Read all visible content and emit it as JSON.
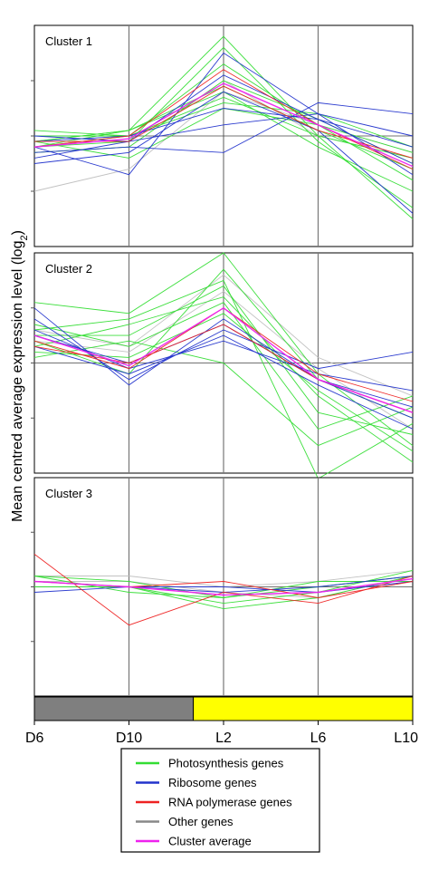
{
  "chart_data": {
    "type": "line",
    "ylabel": "Mean centred average expression level (log",
    "ylabel_sub": "2",
    "ylabel_close": ")",
    "x": [
      "D6",
      "D10",
      "L2",
      "L6",
      "L10"
    ],
    "condition_bar": {
      "segments": [
        {
          "name": "dark",
          "from": "D6",
          "to_fraction": 0.42,
          "color": "#7f7f7f"
        },
        {
          "name": "light",
          "from_fraction": 0.42,
          "to": "L10",
          "color": "#ffff00"
        }
      ]
    },
    "colors": {
      "photosynthesis": "#33dd33",
      "ribosome": "#2233cc",
      "rna_polymerase": "#ee2222",
      "other": "#bbbbbb",
      "cluster_average": "#ee22ee",
      "gridline": "#777777"
    },
    "legend": [
      {
        "key": "photosynthesis",
        "label": "Photosynthesis genes",
        "color": "#33dd33"
      },
      {
        "key": "ribosome",
        "label": "Ribosome genes",
        "color": "#2233cc"
      },
      {
        "key": "rna_polymerase",
        "label": "RNA polymerase genes",
        "color": "#ee2222"
      },
      {
        "key": "other",
        "label": "Other genes",
        "color": "#888888"
      },
      {
        "key": "cluster_average",
        "label": "Cluster average",
        "color": "#ee22ee"
      }
    ],
    "legend_placement": "bottom-center",
    "panels": [
      {
        "label": "Cluster 1",
        "ylim": [
          -2,
          2
        ],
        "yticks": [
          -1,
          0,
          1
        ],
        "series": [
          {
            "group": "photosynthesis",
            "values": [
              -0.1,
              0.1,
              1.8,
              0.0,
              -1.5
            ]
          },
          {
            "group": "photosynthesis",
            "values": [
              -0.2,
              -0.1,
              1.6,
              -0.1,
              -1.3
            ]
          },
          {
            "group": "photosynthesis",
            "values": [
              0.0,
              0.0,
              1.3,
              0.2,
              -0.8
            ]
          },
          {
            "group": "photosynthesis",
            "values": [
              -0.3,
              -0.2,
              1.0,
              0.3,
              -0.5
            ]
          },
          {
            "group": "photosynthesis",
            "values": [
              -0.1,
              0.1,
              0.9,
              0.1,
              -0.6
            ]
          },
          {
            "group": "photosynthesis",
            "values": [
              0.1,
              0.0,
              0.7,
              0.0,
              -0.4
            ]
          },
          {
            "group": "photosynthesis",
            "values": [
              -0.2,
              0.0,
              0.6,
              0.4,
              -0.2
            ]
          },
          {
            "group": "photosynthesis",
            "values": [
              -0.1,
              -0.4,
              0.5,
              0.2,
              -0.3
            ]
          },
          {
            "group": "photosynthesis",
            "values": [
              -0.2,
              0.1,
              0.8,
              -0.2,
              -1.0
            ]
          },
          {
            "group": "ribosome",
            "values": [
              -0.2,
              -0.7,
              1.5,
              0.4,
              -0.7
            ]
          },
          {
            "group": "ribosome",
            "values": [
              -0.4,
              -0.1,
              1.1,
              0.3,
              -0.5
            ]
          },
          {
            "group": "ribosome",
            "values": [
              -0.3,
              -0.2,
              -0.3,
              0.6,
              0.4
            ]
          },
          {
            "group": "ribosome",
            "values": [
              -0.1,
              0.0,
              0.5,
              0.3,
              -0.2
            ]
          },
          {
            "group": "ribosome",
            "values": [
              -0.5,
              -0.3,
              0.8,
              0.1,
              -1.4
            ]
          },
          {
            "group": "ribosome",
            "values": [
              0.0,
              -0.1,
              0.2,
              0.4,
              0.0
            ]
          },
          {
            "group": "rna_polymerase",
            "values": [
              -0.2,
              0.0,
              1.2,
              0.2,
              -0.6
            ]
          },
          {
            "group": "rna_polymerase",
            "values": [
              -0.1,
              -0.1,
              0.9,
              0.1,
              -0.4
            ]
          },
          {
            "group": "other",
            "values": [
              -1.0,
              -0.6,
              0.8,
              0.2,
              -0.3
            ]
          },
          {
            "group": "other",
            "values": [
              -0.3,
              -0.2,
              1.0,
              0.0,
              -0.4
            ]
          },
          {
            "group": "cluster_average",
            "values": [
              -0.2,
              -0.05,
              0.95,
              0.2,
              -0.55
            ]
          }
        ]
      },
      {
        "label": "Cluster 2",
        "ylim": [
          -2,
          2
        ],
        "yticks": [
          -1,
          0,
          1
        ],
        "series": [
          {
            "group": "photosynthesis",
            "values": [
              1.1,
              0.9,
              2.0,
              -0.2,
              -1.5
            ]
          },
          {
            "group": "photosynthesis",
            "values": [
              0.6,
              0.8,
              1.5,
              -2.1,
              -1.1
            ]
          },
          {
            "group": "photosynthesis",
            "values": [
              0.3,
              0.7,
              1.2,
              -0.6,
              -1.8
            ]
          },
          {
            "group": "photosynthesis",
            "values": [
              0.5,
              0.5,
              1.4,
              -0.9,
              -1.3
            ]
          },
          {
            "group": "photosynthesis",
            "values": [
              0.4,
              -0.2,
              1.7,
              -0.3,
              -1.0
            ]
          },
          {
            "group": "photosynthesis",
            "values": [
              0.2,
              0.1,
              0.9,
              -0.5,
              -1.6
            ]
          },
          {
            "group": "photosynthesis",
            "values": [
              0.7,
              0.3,
              1.1,
              -1.2,
              -0.6
            ]
          },
          {
            "group": "photosynthesis",
            "values": [
              0.1,
              0.4,
              0.0,
              -1.5,
              -0.8
            ]
          },
          {
            "group": "ribosome",
            "values": [
              1.0,
              -0.4,
              0.8,
              -0.3,
              -0.8
            ]
          },
          {
            "group": "ribosome",
            "values": [
              0.6,
              -0.1,
              0.4,
              -0.2,
              -0.5
            ]
          },
          {
            "group": "ribosome",
            "values": [
              0.3,
              -0.2,
              0.5,
              -0.4,
              -1.2
            ]
          },
          {
            "group": "ribosome",
            "values": [
              0.8,
              -0.3,
              0.6,
              -0.1,
              0.2
            ]
          },
          {
            "group": "ribosome",
            "values": [
              0.5,
              0.0,
              0.7,
              -0.3,
              -1.0
            ]
          },
          {
            "group": "rna_polymerase",
            "values": [
              0.4,
              -0.1,
              1.0,
              -0.2,
              -0.7
            ]
          },
          {
            "group": "rna_polymerase",
            "values": [
              0.3,
              0.0,
              0.7,
              -0.3,
              -0.9
            ]
          },
          {
            "group": "other",
            "values": [
              0.6,
              0.3,
              1.6,
              0.1,
              -0.6
            ]
          },
          {
            "group": "other",
            "values": [
              0.4,
              0.2,
              1.3,
              -0.1,
              -1.2
            ]
          },
          {
            "group": "cluster_average",
            "values": [
              0.5,
              -0.05,
              1.0,
              -0.3,
              -0.9
            ]
          }
        ]
      },
      {
        "label": "Cluster 3",
        "ylim": [
          -2,
          2
        ],
        "yticks": [
          -1,
          0,
          1
        ],
        "series": [
          {
            "group": "photosynthesis",
            "values": [
              0.2,
              0.1,
              -0.2,
              0.1,
              0.1
            ]
          },
          {
            "group": "photosynthesis",
            "values": [
              0.1,
              0.0,
              -0.4,
              -0.2,
              0.2
            ]
          },
          {
            "group": "photosynthesis",
            "values": [
              0.0,
              0.0,
              -0.3,
              -0.1,
              0.3
            ]
          },
          {
            "group": "photosynthesis",
            "values": [
              0.2,
              -0.1,
              -0.2,
              0.0,
              0.2
            ]
          },
          {
            "group": "ribosome",
            "values": [
              -0.1,
              0.0,
              0.0,
              -0.1,
              0.1
            ]
          },
          {
            "group": "ribosome",
            "values": [
              0.1,
              0.0,
              -0.1,
              0.0,
              0.2
            ]
          },
          {
            "group": "rna_polymerase",
            "values": [
              0.6,
              -0.7,
              -0.1,
              -0.3,
              0.2
            ]
          },
          {
            "group": "rna_polymerase",
            "values": [
              0.1,
              0.0,
              0.1,
              -0.2,
              0.1
            ]
          },
          {
            "group": "other",
            "values": [
              0.2,
              0.2,
              0.0,
              0.1,
              0.3
            ]
          },
          {
            "group": "other",
            "values": [
              0.1,
              0.1,
              -0.1,
              -0.2,
              0.2
            ]
          },
          {
            "group": "cluster_average",
            "values": [
              0.1,
              0.0,
              -0.15,
              -0.1,
              0.15
            ]
          }
        ]
      }
    ]
  }
}
